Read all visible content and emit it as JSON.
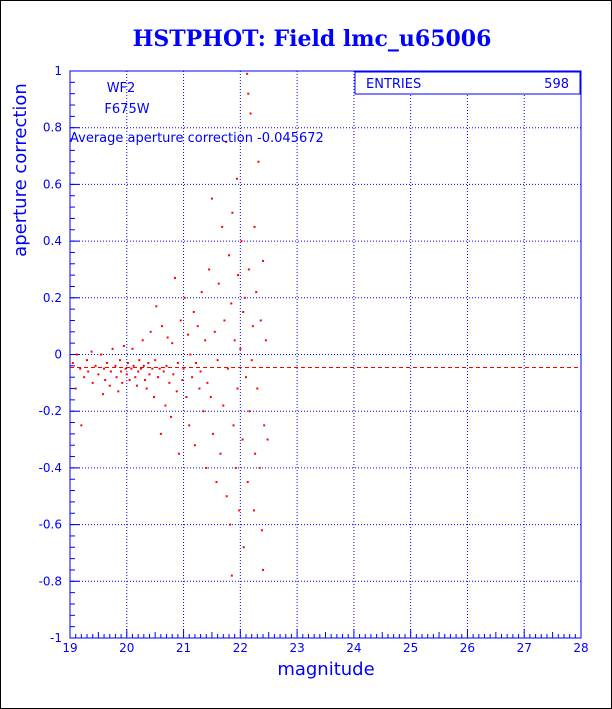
{
  "chart_data": {
    "type": "scatter",
    "title": "HSTPHOT: Field lmc_u65006",
    "xlabel": "magnitude",
    "ylabel": "aperture correction",
    "xlim": [
      19,
      28
    ],
    "ylim": [
      -1,
      1
    ],
    "xticks": [
      "19",
      "20",
      "21",
      "22",
      "23",
      "24",
      "25",
      "26",
      "27",
      "28"
    ],
    "yticks": [
      "-1",
      "-0.8",
      "-0.6",
      "-0.4",
      "-0.2",
      "0",
      "0.2",
      "0.4",
      "0.6",
      "0.8",
      "1"
    ],
    "grid": true,
    "chip": "WF2",
    "filter": "F675W",
    "average_label": "Average aperture correction -0.045672",
    "average_value": -0.045672,
    "entries_label": "ENTRIES",
    "entries_value": "598",
    "point_color": "#ff0000",
    "grid_color": "#0000ff",
    "points": [
      [
        19.05,
        -0.03
      ],
      [
        19.1,
        -0.12
      ],
      [
        19.12,
        0.0
      ],
      [
        19.18,
        -0.05
      ],
      [
        19.2,
        -0.25
      ],
      [
        19.25,
        -0.08
      ],
      [
        19.3,
        -0.02
      ],
      [
        19.32,
        -0.06
      ],
      [
        19.38,
        0.01
      ],
      [
        19.4,
        -0.1
      ],
      [
        19.45,
        -0.04
      ],
      [
        19.5,
        -0.07
      ],
      [
        19.55,
        0.0
      ],
      [
        19.58,
        -0.14
      ],
      [
        19.6,
        -0.05
      ],
      [
        19.62,
        -0.09
      ],
      [
        19.65,
        -0.03
      ],
      [
        19.7,
        -0.11
      ],
      [
        19.72,
        -0.06
      ],
      [
        19.75,
        0.02
      ],
      [
        19.8,
        -0.04
      ],
      [
        19.82,
        -0.08
      ],
      [
        19.85,
        -0.13
      ],
      [
        19.88,
        -0.02
      ],
      [
        19.9,
        -0.06
      ],
      [
        19.92,
        -0.1
      ],
      [
        19.95,
        0.03
      ],
      [
        19.98,
        -0.05
      ],
      [
        20.0,
        -0.07
      ],
      [
        20.02,
        -0.03
      ],
      [
        20.05,
        -0.09
      ],
      [
        20.08,
        -0.05
      ],
      [
        20.1,
        0.02
      ],
      [
        20.12,
        -0.04
      ],
      [
        20.15,
        -0.08
      ],
      [
        20.18,
        -0.11
      ],
      [
        20.2,
        -0.06
      ],
      [
        20.22,
        -0.02
      ],
      [
        20.25,
        -0.05
      ],
      [
        20.28,
        0.05
      ],
      [
        20.3,
        -0.04
      ],
      [
        20.32,
        -0.09
      ],
      [
        20.35,
        -0.12
      ],
      [
        20.38,
        -0.03
      ],
      [
        20.4,
        -0.07
      ],
      [
        20.42,
        0.08
      ],
      [
        20.45,
        -0.05
      ],
      [
        20.48,
        -0.15
      ],
      [
        20.5,
        -0.02
      ],
      [
        20.52,
        0.17
      ],
      [
        20.55,
        -0.08
      ],
      [
        20.58,
        -0.05
      ],
      [
        20.6,
        -0.28
      ],
      [
        20.62,
        0.1
      ],
      [
        20.65,
        -0.06
      ],
      [
        20.68,
        -0.18
      ],
      [
        20.7,
        -0.04
      ],
      [
        20.72,
        0.06
      ],
      [
        20.75,
        -0.1
      ],
      [
        20.78,
        -0.22
      ],
      [
        20.8,
        0.04
      ],
      [
        20.82,
        -0.07
      ],
      [
        20.85,
        0.27
      ],
      [
        20.88,
        -0.13
      ],
      [
        20.9,
        -0.03
      ],
      [
        20.92,
        -0.35
      ],
      [
        20.95,
        0.12
      ],
      [
        20.98,
        -0.09
      ],
      [
        21.0,
        -0.05
      ],
      [
        21.02,
        0.2
      ],
      [
        21.05,
        -0.15
      ],
      [
        21.08,
        0.07
      ],
      [
        21.1,
        -0.25
      ],
      [
        21.12,
        0.0
      ],
      [
        21.15,
        -0.08
      ],
      [
        21.18,
        0.15
      ],
      [
        21.2,
        -0.32
      ],
      [
        21.22,
        -0.03
      ],
      [
        21.25,
        0.1
      ],
      [
        21.28,
        -0.12
      ],
      [
        21.3,
        -0.06
      ],
      [
        21.32,
        0.22
      ],
      [
        21.35,
        -0.2
      ],
      [
        21.38,
        0.05
      ],
      [
        21.4,
        -0.4
      ],
      [
        21.42,
        -0.1
      ],
      [
        21.45,
        0.3
      ],
      [
        21.48,
        -0.15
      ],
      [
        21.5,
        0.55
      ],
      [
        21.52,
        -0.28
      ],
      [
        21.55,
        0.08
      ],
      [
        21.58,
        -0.45
      ],
      [
        21.6,
        -0.02
      ],
      [
        21.62,
        0.25
      ],
      [
        21.65,
        -0.35
      ],
      [
        21.68,
        0.45
      ],
      [
        21.7,
        -0.18
      ],
      [
        21.72,
        0.12
      ],
      [
        21.75,
        0.75
      ],
      [
        21.76,
        -0.5
      ],
      [
        21.78,
        -0.05
      ],
      [
        21.8,
        0.35
      ],
      [
        21.82,
        -0.6
      ],
      [
        21.84,
        0.18
      ],
      [
        21.85,
        -0.78
      ],
      [
        21.86,
        0.5
      ],
      [
        21.88,
        -0.25
      ],
      [
        21.9,
        0.05
      ],
      [
        21.92,
        -0.4
      ],
      [
        21.94,
        0.62
      ],
      [
        21.95,
        -0.12
      ],
      [
        21.96,
        0.28
      ],
      [
        21.98,
        -0.55
      ],
      [
        22.0,
        0.02
      ],
      [
        22.02,
        0.4
      ],
      [
        22.04,
        -0.3
      ],
      [
        22.05,
        0.15
      ],
      [
        22.06,
        -0.68
      ],
      [
        22.08,
        0.2
      ],
      [
        22.1,
        -0.08
      ],
      [
        22.12,
        0.99
      ],
      [
        22.13,
        -0.45
      ],
      [
        22.14,
        0.92
      ],
      [
        22.15,
        0.3
      ],
      [
        22.16,
        -0.2
      ],
      [
        22.18,
        0.85
      ],
      [
        22.2,
        -0.02
      ],
      [
        22.22,
        0.1
      ],
      [
        22.24,
        -0.55
      ],
      [
        22.25,
        0.45
      ],
      [
        22.26,
        -0.35
      ],
      [
        22.28,
        0.22
      ],
      [
        22.3,
        -0.12
      ],
      [
        22.32,
        0.68
      ],
      [
        22.34,
        -0.4
      ],
      [
        22.36,
        0.12
      ],
      [
        22.38,
        -0.62
      ],
      [
        22.4,
        0.33
      ],
      [
        22.42,
        -0.25
      ],
      [
        22.45,
        0.05
      ],
      [
        22.48,
        -0.3
      ],
      [
        22.4,
        -0.76
      ]
    ]
  }
}
